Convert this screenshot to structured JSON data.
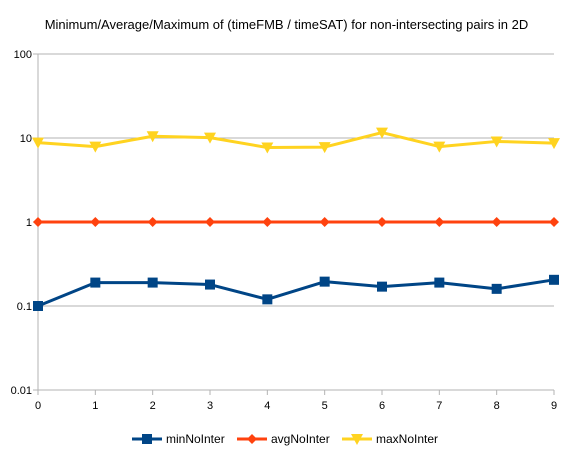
{
  "chart_data": {
    "type": "line",
    "title": "Minimum/Average/Maximum of (timeFMB / timeSAT) for non-intersecting pairs in 2D",
    "xlabel": "",
    "ylabel": "",
    "x": [
      0,
      1,
      2,
      3,
      4,
      5,
      6,
      7,
      8,
      9
    ],
    "yscale": "log",
    "ylim": [
      0.01,
      100
    ],
    "xlim": [
      0,
      9
    ],
    "yticks": [
      "0.01",
      "0.1",
      "1",
      "10",
      "100"
    ],
    "xticks": [
      "0",
      "1",
      "2",
      "3",
      "4",
      "5",
      "6",
      "7",
      "8",
      "9"
    ],
    "grid": "horizontal",
    "legend_position": "bottom",
    "series": [
      {
        "name": "minNoInter",
        "color": "#004586",
        "marker": "square",
        "values": [
          0.1,
          0.19,
          0.19,
          0.18,
          0.12,
          0.195,
          0.17,
          0.19,
          0.16,
          0.205
        ]
      },
      {
        "name": "avgNoInter",
        "color": "#ff420e",
        "marker": "diamond",
        "values": [
          1,
          1,
          1,
          1,
          1,
          1,
          1,
          1,
          1,
          1
        ]
      },
      {
        "name": "maxNoInter",
        "color": "#ffd320",
        "marker": "triangle-down",
        "values": [
          8.8,
          7.9,
          10.5,
          10.1,
          7.7,
          7.8,
          11.6,
          7.9,
          9.1,
          8.7
        ]
      }
    ]
  }
}
